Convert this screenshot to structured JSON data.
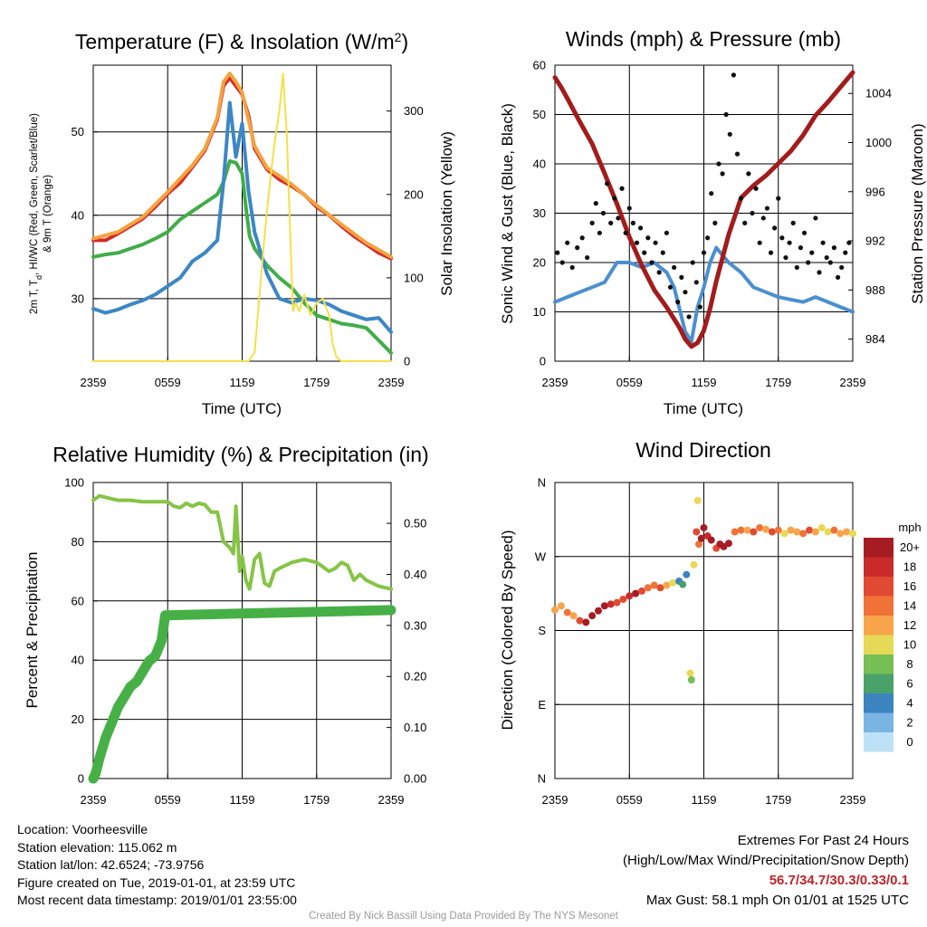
{
  "chart_data": [
    {
      "type": "line",
      "title": "Temperature (F) & Insolation (W/m²)",
      "title_parts": [
        "Temperature (F) & Insolation (W/m",
        "2",
        ")"
      ],
      "xlabel": "Time (UTC)",
      "ylabel_left_line1": "2m T, T",
      "ylabel_left_sub": "d",
      "ylabel_left_rest": ", HI/WC (Red, Green, Scarlet/Blue)",
      "ylabel_left_line2": "& 9m T (Orange)",
      "ylabel_right": "Solar Insolation (Yellow)",
      "xticks": [
        "2359",
        "0559",
        "1159",
        "1759",
        "2359"
      ],
      "yticks_left": [
        "30",
        "40",
        "50"
      ],
      "yticks_right": [
        "0",
        "100",
        "200",
        "300"
      ],
      "xlim": [
        0,
        24
      ],
      "ylim_left": [
        22.5,
        58
      ],
      "ylim_right": [
        0,
        355
      ],
      "series": [
        {
          "name": "2m T",
          "color": "#d62a28",
          "x": [
            0,
            1,
            2,
            3,
            4,
            5,
            6,
            7,
            8,
            9,
            10,
            10.5,
            11,
            11.5,
            12,
            12.5,
            13,
            14,
            15,
            16,
            17,
            18,
            19,
            20,
            21,
            22,
            23,
            24
          ],
          "y": [
            37,
            37,
            37.8,
            38.7,
            39.6,
            41,
            42.6,
            43.9,
            45.8,
            47.8,
            51.5,
            55.5,
            56.5,
            55.5,
            54.5,
            52,
            48,
            45.5,
            44.3,
            43.5,
            42.5,
            41,
            40,
            38.7,
            37.5,
            36.5,
            35.5,
            34.8
          ]
        },
        {
          "name": "9m T",
          "color": "#f4a340",
          "x": [
            0,
            2,
            4,
            6,
            8,
            9,
            10,
            10.5,
            11,
            11.5,
            12,
            13,
            14,
            16,
            18,
            20,
            22,
            24
          ],
          "y": [
            37.2,
            38,
            39.8,
            42.8,
            46,
            48,
            51.7,
            56,
            57,
            56,
            54.7,
            48.3,
            45.7,
            43.7,
            41.2,
            38.9,
            36.7,
            35
          ]
        },
        {
          "name": "Td",
          "color": "#41ad49",
          "x": [
            0,
            1,
            2,
            3,
            4,
            5,
            6,
            7,
            8,
            9,
            10,
            10.5,
            11,
            11.5,
            12,
            12.3,
            12.6,
            13,
            14,
            15,
            16,
            17,
            18,
            19,
            20,
            21,
            22,
            23,
            24
          ],
          "y": [
            35,
            35.3,
            35.5,
            36,
            36.5,
            37.2,
            38,
            39.5,
            40.5,
            41.5,
            42.5,
            44,
            46.5,
            46.3,
            45,
            41,
            37.5,
            36,
            34,
            32.5,
            31.3,
            29.5,
            28,
            27.5,
            27,
            26.8,
            26.5,
            25,
            23.5
          ]
        },
        {
          "name": "HI/WC",
          "color": "#3c87c4",
          "x": [
            0,
            1,
            2,
            3,
            4,
            5,
            6,
            7,
            8,
            9,
            10,
            10.5,
            11,
            11.5,
            12,
            12.5,
            13,
            14,
            15,
            16,
            17,
            18,
            19,
            20,
            21,
            22,
            23,
            24
          ],
          "y": [
            28.8,
            28.3,
            28.7,
            29.3,
            29.8,
            30.5,
            31.5,
            32.5,
            34.5,
            35.5,
            37,
            44,
            53.5,
            47,
            51,
            43,
            38,
            33,
            30,
            29.5,
            30,
            29.8,
            29.3,
            28.5,
            28,
            27.5,
            27.7,
            26
          ]
        },
        {
          "name": "Solar Insolation",
          "color": "#f5e04a",
          "axis": "right",
          "x": [
            0,
            12.5,
            13,
            13.4,
            13.8,
            14.2,
            14.6,
            15,
            15.3,
            15.6,
            15.9,
            16.1,
            16.3,
            16.6,
            17,
            17.5,
            18,
            18.5,
            19,
            19.3,
            19.6,
            20,
            24
          ],
          "y": [
            0,
            0,
            10,
            80,
            150,
            210,
            260,
            300,
            345,
            270,
            140,
            60,
            70,
            60,
            80,
            55,
            70,
            75,
            55,
            20,
            5,
            0,
            0
          ]
        }
      ]
    },
    {
      "type": "line",
      "title": "Winds (mph) & Pressure (mb)",
      "xlabel": "Time (UTC)",
      "ylabel_left": "Sonic Wind & Gust (Blue, Black)",
      "ylabel_right": "Station Pressure (Maroon)",
      "xticks": [
        "2359",
        "0559",
        "1159",
        "1759",
        "2359"
      ],
      "yticks_left": [
        "0",
        "10",
        "20",
        "30",
        "40",
        "50",
        "60"
      ],
      "yticks_right": [
        "984",
        "988",
        "992",
        "996",
        "1000",
        "1004"
      ],
      "xlim": [
        0,
        24
      ],
      "ylim_left": [
        0,
        60
      ],
      "ylim_right": [
        982.2,
        1006.3
      ],
      "series": [
        {
          "name": "Sonic Wind",
          "color": "#4b8fcf",
          "x": [
            0,
            1,
            2,
            3,
            4,
            5,
            6,
            7,
            8,
            9,
            9.6,
            10,
            10.5,
            11,
            11.5,
            12,
            12.5,
            13,
            14,
            15,
            16,
            17,
            18,
            19,
            20,
            21,
            22,
            23,
            24
          ],
          "y": [
            12,
            13,
            14,
            15,
            16,
            20,
            20,
            19,
            20,
            18,
            15,
            11,
            6,
            4,
            11,
            15,
            20,
            23,
            20,
            18,
            15,
            14,
            13,
            12.5,
            12,
            13,
            12,
            11,
            10
          ]
        },
        {
          "name": "Station Pressure",
          "color": "#a31c1c",
          "axis": "right",
          "x": [
            0,
            0.5,
            1,
            2,
            3,
            4,
            5,
            6,
            7,
            8,
            9,
            10,
            10.5,
            11,
            11.5,
            12,
            12.5,
            13,
            14,
            15,
            16,
            17,
            18,
            19,
            20,
            21,
            22,
            23,
            24
          ],
          "y": [
            1005.3,
            1004.5,
            1003.6,
            1001.7,
            999.9,
            997.5,
            995,
            992.3,
            990,
            988,
            986.6,
            985,
            984,
            983.4,
            983.7,
            984.7,
            986.5,
            988.7,
            992.5,
            995.5,
            996.5,
            997.3,
            998.3,
            999.3,
            1000.6,
            1002.2,
            1003.3,
            1004.5,
            1005.7
          ]
        },
        {
          "name": "Gust",
          "color": "#111111",
          "style": "points",
          "x": [
            0.2,
            0.6,
            1,
            1.4,
            1.8,
            2.2,
            2.6,
            3,
            3.3,
            3.6,
            3.9,
            4.2,
            4.5,
            4.8,
            5.1,
            5.4,
            5.7,
            6,
            6.3,
            6.6,
            6.9,
            7.2,
            7.5,
            7.8,
            8.1,
            8.4,
            8.7,
            9,
            9.3,
            9.6,
            9.9,
            10.2,
            10.5,
            10.8,
            11.1,
            11.4,
            11.7,
            12,
            12.3,
            12.6,
            12.9,
            13.2,
            13.5,
            13.8,
            14.1,
            14.4,
            14.7,
            15,
            15.3,
            15.6,
            15.9,
            16.2,
            16.5,
            16.8,
            17.1,
            17.4,
            17.7,
            18,
            18.3,
            18.6,
            18.9,
            19.2,
            19.5,
            19.8,
            20.1,
            20.4,
            20.7,
            21,
            21.3,
            21.6,
            21.9,
            22.2,
            22.5,
            22.8,
            23.1,
            23.4,
            23.7
          ],
          "y": [
            22,
            20,
            24,
            19,
            23,
            25,
            21,
            28,
            32,
            26,
            30,
            36,
            28,
            33,
            29,
            35,
            26,
            31,
            28,
            24,
            27,
            22,
            25,
            20,
            24,
            18,
            22,
            26,
            15,
            19,
            12,
            17,
            14,
            9,
            20,
            16,
            11,
            22,
            25,
            34,
            28,
            40,
            38,
            50,
            46,
            58,
            42,
            33,
            28,
            38,
            30,
            35,
            24,
            29,
            31,
            22,
            27,
            33,
            25,
            21,
            24,
            28,
            19,
            23,
            26,
            20,
            22,
            29,
            18,
            24,
            21,
            20,
            23,
            17,
            19,
            22,
            24
          ]
        }
      ]
    },
    {
      "type": "line",
      "title": "Relative Humidity (%) & Precipitation (in)",
      "xlabel": "",
      "ylabel_left": "Percent & Precipitation",
      "xticks": [
        "2359",
        "0559",
        "1159",
        "1759",
        "2359"
      ],
      "yticks_left": [
        "0",
        "20",
        "40",
        "60",
        "80",
        "100"
      ],
      "yticks_right": [
        "0.00",
        "0.10",
        "0.20",
        "0.30",
        "0.40",
        "0.50"
      ],
      "xlim": [
        0,
        24
      ],
      "ylim_left": [
        0,
        100
      ],
      "ylim_right": [
        0,
        0.58
      ],
      "series": [
        {
          "name": "Relative Humidity",
          "color": "#86c446",
          "x": [
            0,
            0.5,
            1,
            2,
            3,
            4,
            5,
            6,
            6.5,
            7,
            7.5,
            8,
            8.5,
            9,
            9.5,
            10,
            10.5,
            11,
            11.3,
            11.5,
            11.8,
            12,
            12.3,
            12.6,
            13,
            13.4,
            13.8,
            14.2,
            14.6,
            15,
            15.5,
            16,
            17,
            18,
            19,
            19.5,
            20,
            20.5,
            21,
            21.5,
            22,
            22.5,
            23,
            24
          ],
          "y": [
            94,
            95.5,
            95,
            94,
            94,
            93.5,
            93.5,
            93.5,
            92,
            91.5,
            93,
            92,
            93,
            92.5,
            90,
            90,
            80,
            78,
            76,
            92,
            70,
            75,
            67,
            64,
            74,
            76,
            66,
            65,
            70,
            71,
            72,
            73,
            74,
            73,
            70,
            71,
            73,
            72,
            67,
            69,
            67,
            66,
            65,
            64
          ]
        },
        {
          "name": "Precipitation",
          "color": "#46b046",
          "axis": "right",
          "x": [
            0,
            0.2,
            0.5,
            1,
            1.5,
            2,
            2.5,
            3,
            3.5,
            4,
            4.5,
            5,
            5.5,
            5.8,
            6.2,
            24
          ],
          "y": [
            0,
            0.01,
            0.04,
            0.08,
            0.11,
            0.14,
            0.16,
            0.18,
            0.19,
            0.21,
            0.23,
            0.24,
            0.27,
            0.32,
            0.32,
            0.33
          ]
        }
      ]
    },
    {
      "type": "scatter",
      "title": "Wind Direction",
      "ylabel_left": "Direction (Colored By Speed)",
      "xticks": [
        "2359",
        "0559",
        "1159",
        "1759",
        "2359"
      ],
      "yticks_left": [
        "N",
        "E",
        "S",
        "W",
        "N"
      ],
      "xlim": [
        0,
        24
      ],
      "ylim_left": [
        0,
        360
      ],
      "color_scale": {
        "title": "mph",
        "labels": [
          "20+",
          "18",
          "16",
          "14",
          "12",
          "10",
          "8",
          "6",
          "4",
          "2",
          "0"
        ],
        "colors": [
          "#a51d22",
          "#c92b2b",
          "#e14a32",
          "#f07236",
          "#f8a449",
          "#e6d955",
          "#76bf54",
          "#4aa26a",
          "#3c84c0",
          "#79b4e2",
          "#bde2f7"
        ]
      },
      "points": {
        "x": [
          0,
          0.5,
          1,
          1.5,
          2,
          2.5,
          3,
          3.5,
          4,
          4.5,
          5,
          5.5,
          6,
          6.5,
          7,
          7.5,
          8,
          8.5,
          9,
          9.5,
          10,
          10.3,
          10.6,
          10.9,
          11,
          11.2,
          11.4,
          11.5,
          11.6,
          11.8,
          12,
          12.3,
          12.6,
          13,
          13.3,
          13.6,
          14,
          14.5,
          15,
          15.5,
          16,
          16.5,
          17,
          17.5,
          18,
          18.5,
          19,
          19.5,
          20,
          20.5,
          21,
          21.5,
          22,
          22.5,
          23,
          23.5,
          24
        ],
        "y": [
          205,
          210,
          202,
          198,
          192,
          190,
          198,
          204,
          210,
          212,
          214,
          218,
          222,
          225,
          228,
          232,
          235,
          232,
          235,
          238,
          240,
          236,
          248,
          128,
          120,
          260,
          300,
          338,
          285,
          292,
          305,
          295,
          290,
          280,
          285,
          282,
          286,
          300,
          302,
          302,
          300,
          305,
          303,
          300,
          302,
          298,
          302,
          300,
          298,
          302,
          300,
          305,
          300,
          302,
          298,
          300,
          298
        ],
        "speed": [
          12,
          12,
          14,
          12,
          16,
          20,
          20,
          20,
          20,
          18,
          16,
          16,
          18,
          20,
          16,
          14,
          14,
          16,
          12,
          10,
          4,
          6,
          4,
          10,
          8,
          10,
          16,
          10,
          14,
          20,
          20,
          18,
          20,
          16,
          20,
          20,
          20,
          14,
          14,
          12,
          16,
          14,
          12,
          16,
          14,
          10,
          12,
          12,
          14,
          16,
          12,
          10,
          10,
          14,
          12,
          12,
          10
        ]
      }
    }
  ],
  "info": {
    "location": "Location: Voorheesville",
    "elevation": "Station elevation: 115.062 m",
    "latlon": "Station lat/lon: 42.6524; -73.9756",
    "created": "Figure created on Tue, 2019-01-01, at 23:59 UTC",
    "recent": "Most recent data timestamp: 2019/01/01 23:55:00"
  },
  "extremes": {
    "title": "Extremes For Past 24 Hours",
    "subtitle": "(High/Low/Max Wind/Precipitation/Snow Depth)",
    "values": "56.7/34.7/30.3/0.33/0.1",
    "max_gust": "Max Gust: 58.1 mph On 01/01 at 1525 UTC"
  },
  "credit": "Created By Nick Bassill Using Data Provided By The NYS Mesonet"
}
